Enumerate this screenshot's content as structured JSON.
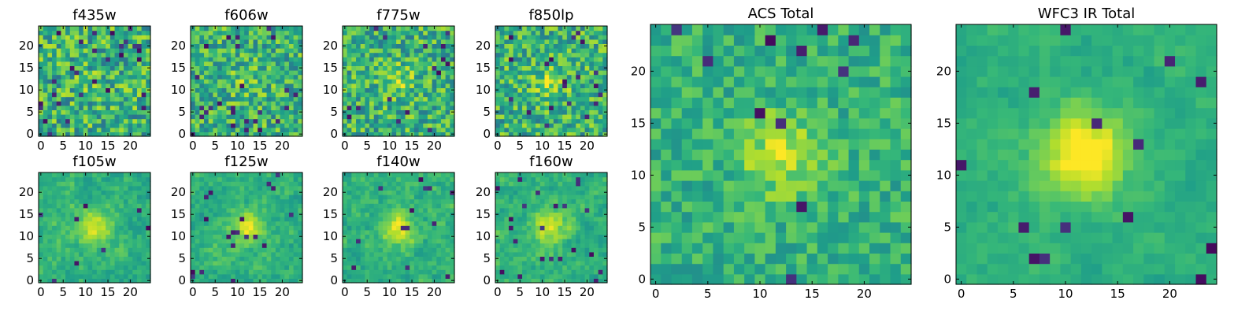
{
  "figure": {
    "colormap": "viridis",
    "colors": {
      "background": "#ffffff",
      "frame": "#000000"
    }
  },
  "chart_data": [
    {
      "type": "heatmap",
      "title": "f435w",
      "grid_size": 25,
      "xlim": [
        0,
        24
      ],
      "ylim": [
        0,
        24
      ],
      "xticks": [
        "0",
        "5",
        "10",
        "15",
        "20"
      ],
      "yticks": [
        "0",
        "5",
        "10",
        "15",
        "20"
      ],
      "value_range": [
        0,
        1
      ],
      "source_strength": 0.05,
      "noise": 0.26,
      "dark_rate": 0.05,
      "blur": 0,
      "seed": 11
    },
    {
      "type": "heatmap",
      "title": "f606w",
      "grid_size": 25,
      "xlim": [
        0,
        24
      ],
      "ylim": [
        0,
        24
      ],
      "xticks": [
        "0",
        "5",
        "10",
        "15",
        "20"
      ],
      "yticks": [
        "0",
        "5",
        "10",
        "15",
        "20"
      ],
      "value_range": [
        0,
        1
      ],
      "source_strength": 0.12,
      "noise": 0.24,
      "dark_rate": 0.035,
      "blur": 0,
      "seed": 23
    },
    {
      "type": "heatmap",
      "title": "f775w",
      "grid_size": 25,
      "xlim": [
        0,
        24
      ],
      "ylim": [
        0,
        24
      ],
      "xticks": [
        "0",
        "5",
        "10",
        "15",
        "20"
      ],
      "yticks": [
        "0",
        "5",
        "10",
        "15",
        "20"
      ],
      "value_range": [
        0,
        1
      ],
      "source_strength": 0.18,
      "noise": 0.24,
      "dark_rate": 0.03,
      "blur": 0,
      "seed": 37
    },
    {
      "type": "heatmap",
      "title": "f850lp",
      "grid_size": 25,
      "xlim": [
        0,
        24
      ],
      "ylim": [
        0,
        24
      ],
      "xticks": [
        "0",
        "5",
        "10",
        "15",
        "20"
      ],
      "yticks": [
        "0",
        "5",
        "10",
        "15",
        "20"
      ],
      "value_range": [
        0,
        1
      ],
      "source_strength": 0.2,
      "noise": 0.24,
      "dark_rate": 0.035,
      "blur": 0,
      "seed": 41
    },
    {
      "type": "heatmap",
      "title": "f105w",
      "grid_size": 25,
      "xlim": [
        0,
        24
      ],
      "ylim": [
        0,
        24
      ],
      "xticks": [
        "0",
        "5",
        "10",
        "15",
        "20"
      ],
      "yticks": [
        "0",
        "5",
        "10",
        "15",
        "20"
      ],
      "value_range": [
        0,
        1
      ],
      "source_strength": 0.32,
      "noise": 0.14,
      "dark_rate": 0.025,
      "blur": 1,
      "seed": 53
    },
    {
      "type": "heatmap",
      "title": "f125w",
      "grid_size": 25,
      "xlim": [
        0,
        24
      ],
      "ylim": [
        0,
        24
      ],
      "xticks": [
        "0",
        "5",
        "10",
        "15",
        "20"
      ],
      "yticks": [
        "0",
        "5",
        "10",
        "15",
        "20"
      ],
      "value_range": [
        0,
        1
      ],
      "source_strength": 0.34,
      "noise": 0.14,
      "dark_rate": 0.025,
      "blur": 1,
      "seed": 67
    },
    {
      "type": "heatmap",
      "title": "f140w",
      "grid_size": 25,
      "xlim": [
        0,
        24
      ],
      "ylim": [
        0,
        24
      ],
      "xticks": [
        "0",
        "5",
        "10",
        "15",
        "20"
      ],
      "yticks": [
        "0",
        "5",
        "10",
        "15",
        "20"
      ],
      "value_range": [
        0,
        1
      ],
      "source_strength": 0.34,
      "noise": 0.14,
      "dark_rate": 0.03,
      "blur": 1,
      "seed": 79
    },
    {
      "type": "heatmap",
      "title": "f160w",
      "grid_size": 25,
      "xlim": [
        0,
        24
      ],
      "ylim": [
        0,
        24
      ],
      "xticks": [
        "0",
        "5",
        "10",
        "15",
        "20"
      ],
      "yticks": [
        "0",
        "5",
        "10",
        "15",
        "20"
      ],
      "value_range": [
        0,
        1
      ],
      "source_strength": 0.36,
      "noise": 0.14,
      "dark_rate": 0.03,
      "blur": 1,
      "seed": 83
    },
    {
      "type": "heatmap",
      "title": "ACS Total",
      "grid_size": 25,
      "xlim": [
        0,
        24
      ],
      "ylim": [
        0,
        24
      ],
      "xticks": [
        "0",
        "5",
        "10",
        "15",
        "20"
      ],
      "yticks": [
        "0",
        "5",
        "10",
        "15",
        "20"
      ],
      "value_range": [
        0,
        1
      ],
      "source_strength": 0.28,
      "noise": 0.14,
      "dark_rate": 0.02,
      "blur": 0,
      "seed": 97
    },
    {
      "type": "heatmap",
      "title": "WFC3 IR Total",
      "grid_size": 25,
      "xlim": [
        0,
        24
      ],
      "ylim": [
        0,
        24
      ],
      "xticks": [
        "0",
        "5",
        "10",
        "15",
        "20"
      ],
      "yticks": [
        "0",
        "5",
        "10",
        "15",
        "20"
      ],
      "value_range": [
        0,
        1
      ],
      "source_strength": 0.5,
      "noise": 0.09,
      "dark_rate": 0.02,
      "blur": 1,
      "seed": 101
    }
  ]
}
